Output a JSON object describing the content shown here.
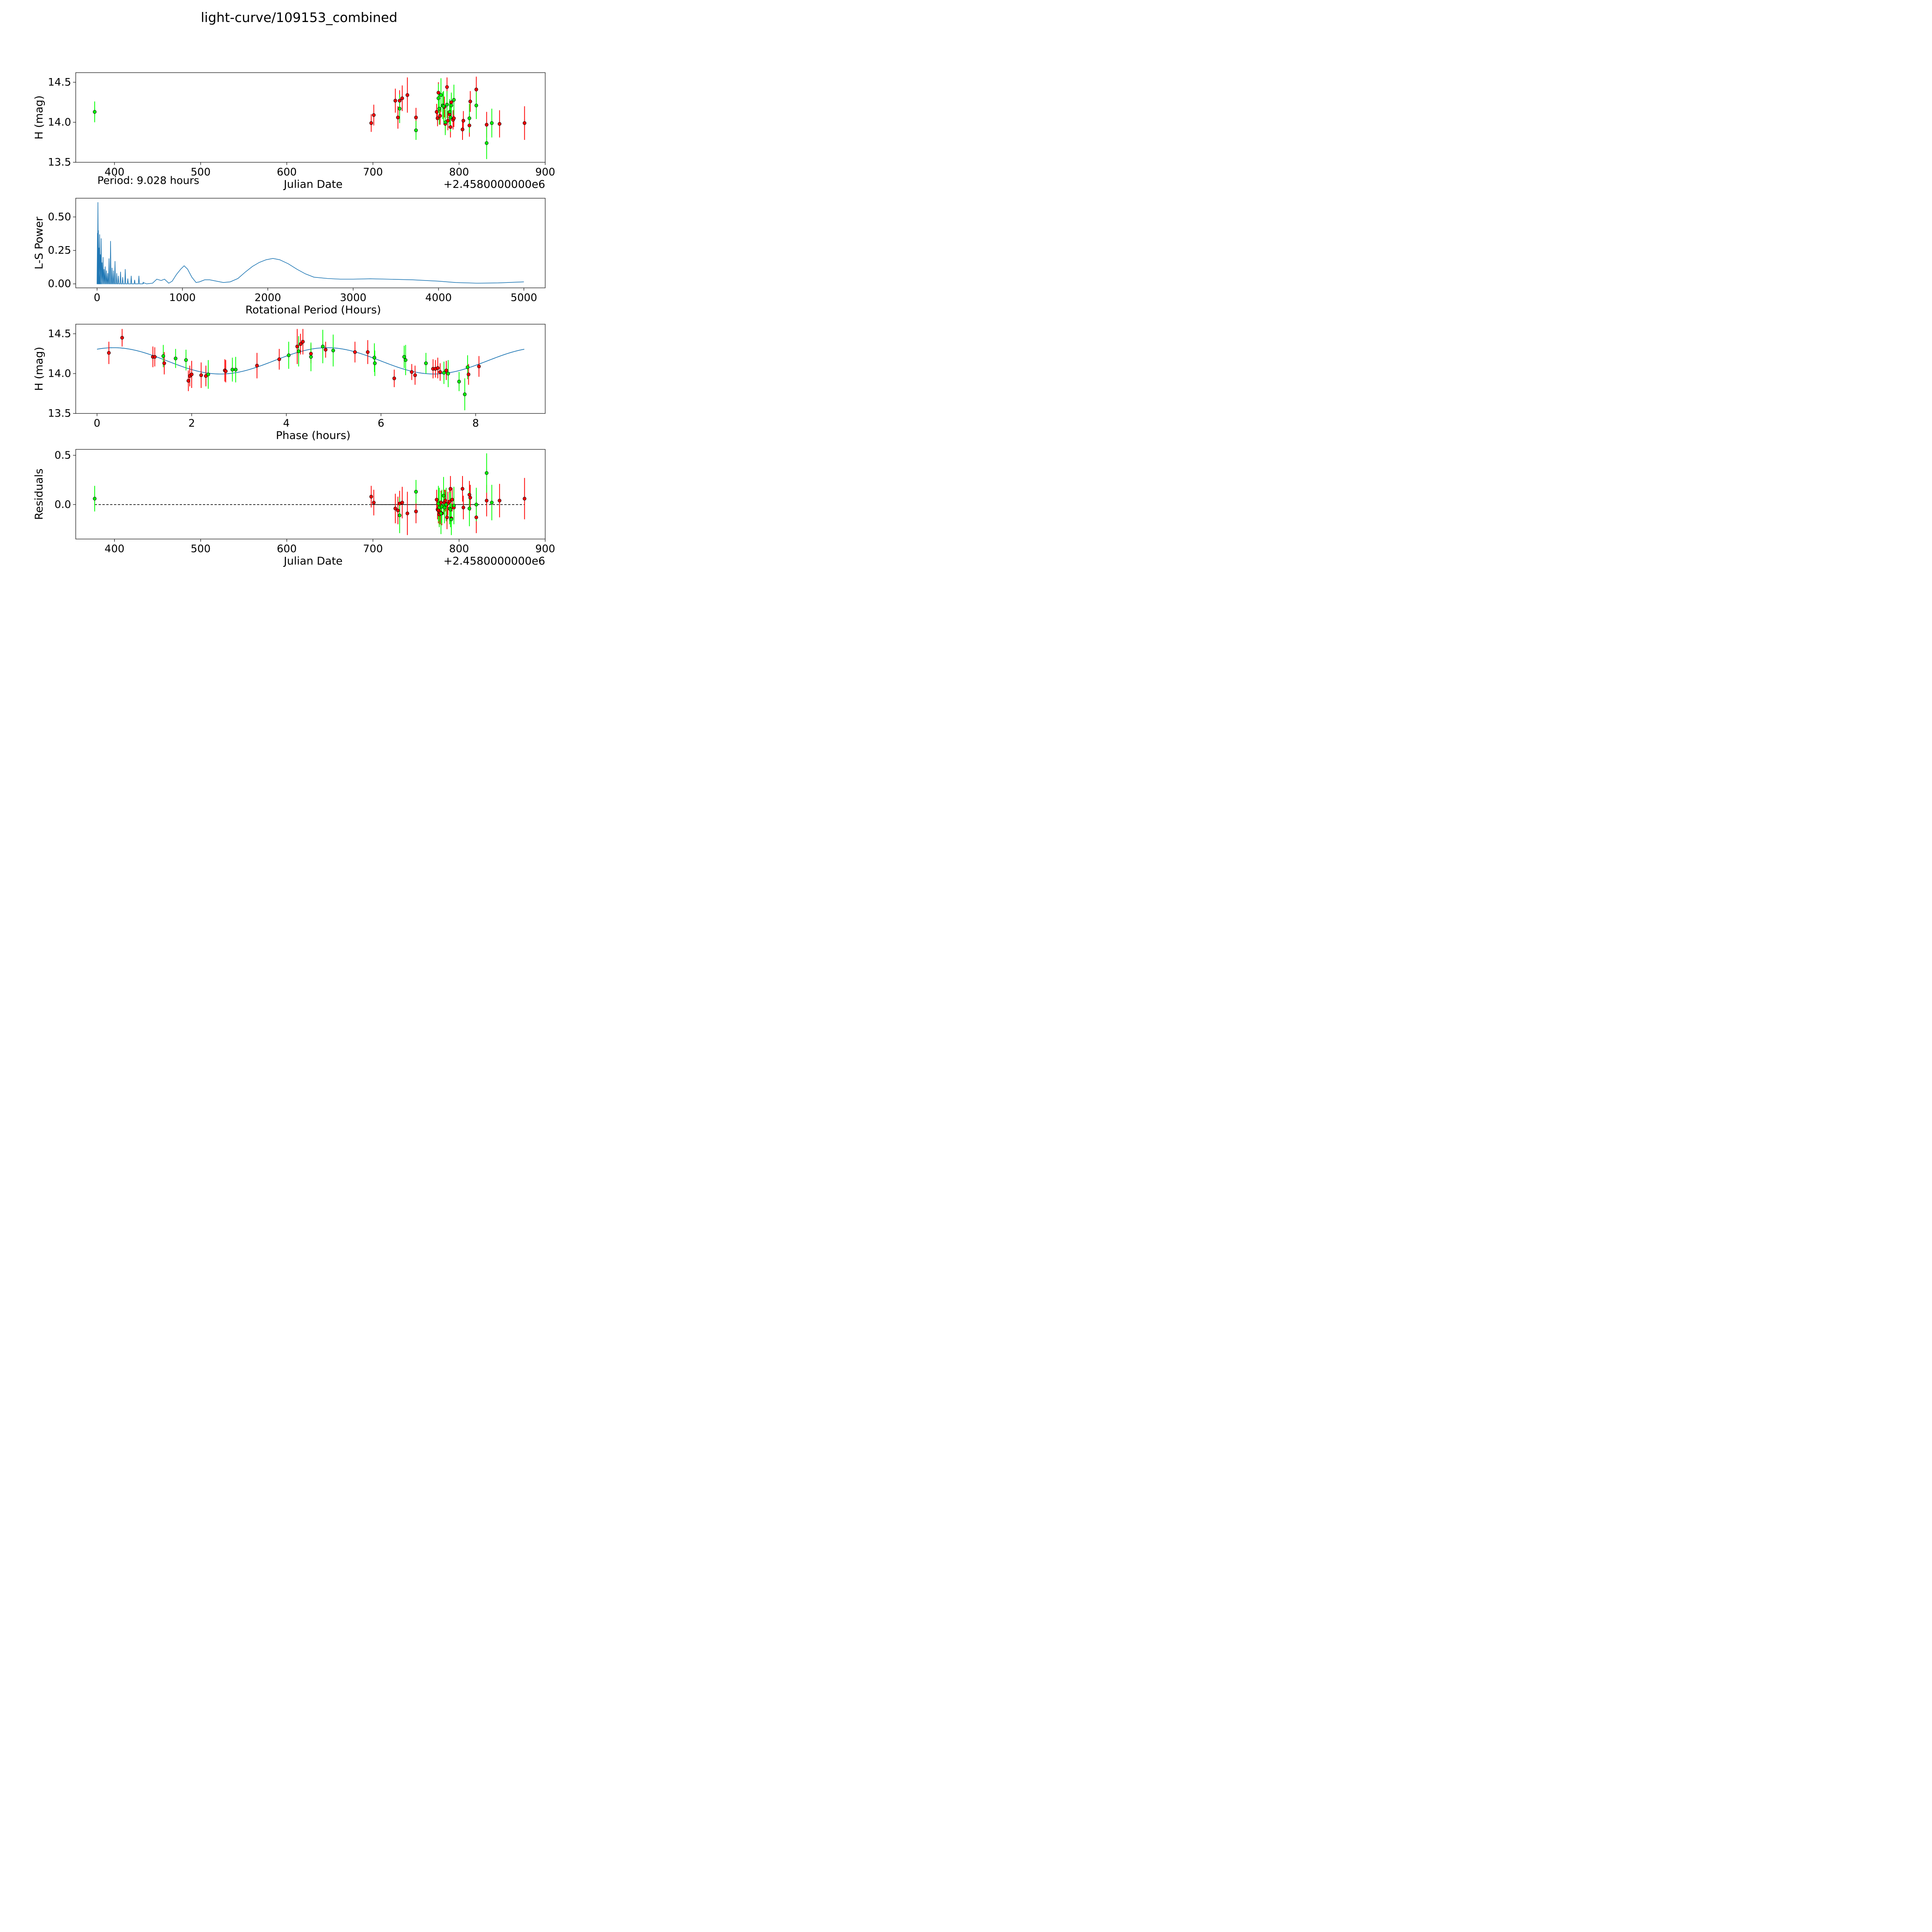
{
  "figure": {
    "title": "light-curve/109153_combined",
    "period_note": "Period: 9.028 hours"
  },
  "colors": {
    "series_a": "#ff0000",
    "series_b": "#00ff00",
    "curve": "#1f77b4",
    "marker_edge": "#000000",
    "zero_line": "#000000"
  },
  "chart_data": [
    {
      "id": "lightcurve",
      "type": "scatter",
      "xlabel": "Julian Date",
      "ylabel": "H (mag)",
      "offset_text": "+2.4580000000e6",
      "xlim": [
        355,
        900
      ],
      "ylim": [
        13.5,
        14.62
      ],
      "xticks": [
        400,
        500,
        600,
        700,
        800,
        900
      ],
      "yticks": [
        13.5,
        14.0,
        14.5
      ],
      "grid": false,
      "series": [
        {
          "color": "#ff0000",
          "points": [
            [
              698,
              13.99,
              0.11
            ],
            [
              701,
              14.09,
              0.13
            ],
            [
              726,
              14.27,
              0.15
            ],
            [
              729,
              14.06,
              0.14
            ],
            [
              731,
              14.27,
              0.13
            ],
            [
              734,
              14.3,
              0.16
            ],
            [
              740,
              14.34,
              0.22
            ],
            [
              750,
              14.06,
              0.12
            ],
            [
              774,
              14.13,
              0.1
            ],
            [
              775,
              14.05,
              0.1
            ],
            [
              776,
              14.37,
              0.13
            ],
            [
              778,
              14.08,
              0.11
            ],
            [
              783,
              14.19,
              0.13
            ],
            [
              784,
              13.98,
              0.11
            ],
            [
              786,
              14.44,
              0.12
            ],
            [
              787,
              14.02,
              0.12
            ],
            [
              789,
              14.1,
              0.12
            ],
            [
              790,
              13.94,
              0.13
            ],
            [
              791,
              14.25,
              0.12
            ],
            [
              793,
              14.03,
              0.12
            ],
            [
              794,
              14.05,
              0.11
            ],
            [
              804,
              13.91,
              0.13
            ],
            [
              805,
              14.02,
              0.12
            ],
            [
              812,
              13.96,
              0.14
            ],
            [
              813,
              14.26,
              0.13
            ],
            [
              820,
              14.41,
              0.16
            ],
            [
              832,
              13.97,
              0.16
            ],
            [
              847,
              13.98,
              0.17
            ],
            [
              876,
              13.99,
              0.21
            ]
          ]
        },
        {
          "color": "#00ff00",
          "points": [
            [
              377,
              14.13,
              0.13
            ],
            [
              731,
              14.17,
              0.18
            ],
            [
              750,
              13.9,
              0.12
            ],
            [
              776,
              14.3,
              0.18
            ],
            [
              777,
              14.17,
              0.2
            ],
            [
              779,
              14.34,
              0.21
            ],
            [
              781,
              14.21,
              0.17
            ],
            [
              782,
              14.2,
              0.19
            ],
            [
              784,
              14.0,
              0.16
            ],
            [
              786,
              14.22,
              0.17
            ],
            [
              789,
              14.13,
              0.16
            ],
            [
              790,
              14.06,
              0.18
            ],
            [
              791,
              14.21,
              0.16
            ],
            [
              794,
              14.28,
              0.19
            ],
            [
              812,
              14.05,
              0.18
            ],
            [
              820,
              14.21,
              0.17
            ],
            [
              832,
              13.74,
              0.2
            ],
            [
              838,
              13.99,
              0.18
            ]
          ]
        }
      ]
    },
    {
      "id": "periodogram",
      "type": "line",
      "xlabel": "Rotational Period (Hours)",
      "ylabel": "L-S Power",
      "xlim": [
        -250,
        5250
      ],
      "ylim": [
        -0.03,
        0.64
      ],
      "xticks": [
        0,
        1000,
        2000,
        3000,
        4000,
        5000
      ],
      "yticks": [
        0.0,
        0.25,
        0.5
      ],
      "ytick_labels": [
        "0.00",
        "0.25",
        "0.50"
      ],
      "grid": false,
      "spikes": [
        [
          5,
          0.38
        ],
        [
          10,
          0.61
        ],
        [
          15,
          0.4
        ],
        [
          22,
          0.27
        ],
        [
          30,
          0.37
        ],
        [
          38,
          0.22
        ],
        [
          48,
          0.34
        ],
        [
          58,
          0.16
        ],
        [
          70,
          0.2
        ],
        [
          82,
          0.11
        ],
        [
          95,
          0.13
        ],
        [
          110,
          0.1
        ],
        [
          125,
          0.08
        ],
        [
          140,
          0.19
        ],
        [
          158,
          0.32
        ],
        [
          175,
          0.12
        ],
        [
          192,
          0.1
        ],
        [
          210,
          0.17
        ],
        [
          230,
          0.08
        ],
        [
          250,
          0.06
        ],
        [
          275,
          0.09
        ],
        [
          300,
          0.05
        ],
        [
          330,
          0.11
        ],
        [
          360,
          0.04
        ],
        [
          400,
          0.06
        ],
        [
          440,
          0.03
        ],
        [
          490,
          0.06
        ],
        [
          540,
          0.01
        ]
      ],
      "curve": [
        [
          540,
          0.01
        ],
        [
          580,
          0.0
        ],
        [
          650,
          0.005
        ],
        [
          700,
          0.035
        ],
        [
          750,
          0.025
        ],
        [
          790,
          0.035
        ],
        [
          840,
          0.005
        ],
        [
          880,
          0.02
        ],
        [
          930,
          0.07
        ],
        [
          980,
          0.11
        ],
        [
          1020,
          0.135
        ],
        [
          1060,
          0.11
        ],
        [
          1110,
          0.05
        ],
        [
          1160,
          0.01
        ],
        [
          1200,
          0.015
        ],
        [
          1260,
          0.03
        ],
        [
          1320,
          0.03
        ],
        [
          1400,
          0.02
        ],
        [
          1480,
          0.01
        ],
        [
          1560,
          0.015
        ],
        [
          1650,
          0.04
        ],
        [
          1740,
          0.09
        ],
        [
          1820,
          0.13
        ],
        [
          1900,
          0.16
        ],
        [
          1980,
          0.18
        ],
        [
          2060,
          0.19
        ],
        [
          2140,
          0.18
        ],
        [
          2240,
          0.15
        ],
        [
          2340,
          0.11
        ],
        [
          2440,
          0.075
        ],
        [
          2540,
          0.05
        ],
        [
          2700,
          0.04
        ],
        [
          2850,
          0.035
        ],
        [
          3000,
          0.035
        ],
        [
          3200,
          0.038
        ],
        [
          3400,
          0.035
        ],
        [
          3700,
          0.03
        ],
        [
          4000,
          0.02
        ],
        [
          4200,
          0.01
        ],
        [
          4450,
          0.005
        ],
        [
          4700,
          0.007
        ],
        [
          5000,
          0.015
        ]
      ]
    },
    {
      "id": "phased",
      "type": "scatter",
      "xlabel": "Phase (hours)",
      "ylabel": "H (mag)",
      "xlim": [
        -0.45,
        9.47
      ],
      "ylim": [
        13.5,
        14.62
      ],
      "xticks": [
        0,
        2,
        4,
        6,
        8
      ],
      "yticks": [
        13.5,
        14.0,
        14.5
      ],
      "grid": false,
      "model": {
        "mean": 14.16,
        "amplitude": 0.165,
        "harmonics": 2,
        "phase_shift_hours": 0.35,
        "period_hours": 9.028
      },
      "series": [
        {
          "color": "#ff0000",
          "points": [
            [
              0.25,
              14.26,
              0.14
            ],
            [
              0.53,
              14.45,
              0.11
            ],
            [
              1.18,
              14.21,
              0.13
            ],
            [
              1.22,
              14.21,
              0.12
            ],
            [
              1.42,
              14.13,
              0.14
            ],
            [
              1.93,
              13.91,
              0.13
            ],
            [
              1.96,
              13.97,
              0.13
            ],
            [
              2.0,
              13.99,
              0.17
            ],
            [
              2.2,
              13.98,
              0.16
            ],
            [
              2.3,
              13.97,
              0.13
            ],
            [
              2.7,
              14.04,
              0.14
            ],
            [
              2.72,
              14.03,
              0.14
            ],
            [
              3.38,
              14.1,
              0.16
            ],
            [
              3.85,
              14.18,
              0.13
            ],
            [
              4.23,
              14.34,
              0.22
            ],
            [
              4.3,
              14.37,
              0.13
            ],
            [
              4.35,
              14.4,
              0.16
            ],
            [
              4.52,
              14.25,
              0.12
            ],
            [
              4.83,
              14.3,
              0.1
            ],
            [
              5.45,
              14.27,
              0.13
            ],
            [
              5.72,
              14.27,
              0.15
            ],
            [
              6.28,
              13.94,
              0.11
            ],
            [
              6.65,
              14.02,
              0.1
            ],
            [
              6.72,
              13.98,
              0.12
            ],
            [
              7.1,
              14.06,
              0.12
            ],
            [
              7.15,
              14.06,
              0.11
            ],
            [
              7.2,
              14.07,
              0.13
            ],
            [
              7.25,
              14.02,
              0.11
            ],
            [
              7.38,
              14.04,
              0.12
            ],
            [
              7.85,
              13.99,
              0.13
            ],
            [
              8.07,
              14.09,
              0.13
            ]
          ]
        },
        {
          "color": "#00ff00",
          "points": [
            [
              1.4,
              14.22,
              0.14
            ],
            [
              1.66,
              14.19,
              0.12
            ],
            [
              1.88,
              14.17,
              0.13
            ],
            [
              2.35,
              13.99,
              0.18
            ],
            [
              2.86,
              14.05,
              0.15
            ],
            [
              2.93,
              14.05,
              0.16
            ],
            [
              4.05,
              14.23,
              0.17
            ],
            [
              4.26,
              14.28,
              0.19
            ],
            [
              4.52,
              14.21,
              0.18
            ],
            [
              4.77,
              14.34,
              0.21
            ],
            [
              4.99,
              14.29,
              0.2
            ],
            [
              5.86,
              14.2,
              0.18
            ],
            [
              5.87,
              14.13,
              0.16
            ],
            [
              6.49,
              14.21,
              0.14
            ],
            [
              6.52,
              14.17,
              0.19
            ],
            [
              6.95,
              14.13,
              0.13
            ],
            [
              7.33,
              14.01,
              0.14
            ],
            [
              7.42,
              14.0,
              0.17
            ],
            [
              7.65,
              13.9,
              0.12
            ],
            [
              7.77,
              13.74,
              0.2
            ],
            [
              7.83,
              14.08,
              0.15
            ]
          ]
        }
      ]
    },
    {
      "id": "residuals",
      "type": "scatter",
      "xlabel": "Julian Date",
      "ylabel": "Residuals",
      "offset_text": "+2.4580000000e6",
      "xlim": [
        355,
        900
      ],
      "ylim": [
        -0.35,
        0.56
      ],
      "xticks": [
        400,
        500,
        600,
        700,
        800,
        900
      ],
      "yticks": [
        0.0,
        0.5
      ],
      "grid": false,
      "zero_line": {
        "from": 377,
        "to": 876,
        "solid_from": 698,
        "solid_to": 820
      },
      "series": [
        {
          "color": "#ff0000",
          "points": [
            [
              698,
              0.08,
              0.11
            ],
            [
              701,
              0.02,
              0.13
            ],
            [
              726,
              -0.04,
              0.15
            ],
            [
              729,
              -0.06,
              0.14
            ],
            [
              731,
              0.01,
              0.13
            ],
            [
              734,
              0.02,
              0.16
            ],
            [
              740,
              -0.09,
              0.22
            ],
            [
              750,
              -0.07,
              0.12
            ],
            [
              774,
              0.05,
              0.1
            ],
            [
              775,
              -0.05,
              0.1
            ],
            [
              776,
              -0.06,
              0.13
            ],
            [
              777,
              -0.1,
              0.11
            ],
            [
              778,
              -0.08,
              0.12
            ],
            [
              779,
              0.02,
              0.12
            ],
            [
              780,
              -0.09,
              0.12
            ],
            [
              783,
              0.02,
              0.13
            ],
            [
              784,
              0.04,
              0.11
            ],
            [
              786,
              -0.13,
              0.12
            ],
            [
              787,
              0.01,
              0.12
            ],
            [
              789,
              0.03,
              0.12
            ],
            [
              790,
              0.16,
              0.13
            ],
            [
              791,
              -0.14,
              0.12
            ],
            [
              792,
              0.05,
              0.12
            ],
            [
              794,
              -0.03,
              0.11
            ],
            [
              804,
              0.16,
              0.13
            ],
            [
              805,
              -0.03,
              0.12
            ],
            [
              812,
              0.1,
              0.14
            ],
            [
              813,
              0.07,
              0.13
            ],
            [
              820,
              -0.13,
              0.16
            ],
            [
              832,
              0.04,
              0.16
            ],
            [
              847,
              0.04,
              0.17
            ],
            [
              876,
              0.06,
              0.21
            ]
          ]
        },
        {
          "color": "#00ff00",
          "points": [
            [
              377,
              0.06,
              0.13
            ],
            [
              731,
              -0.11,
              0.18
            ],
            [
              750,
              0.13,
              0.12
            ],
            [
              776,
              0.01,
              0.18
            ],
            [
              777,
              -0.03,
              0.2
            ],
            [
              779,
              -0.09,
              0.21
            ],
            [
              780,
              -0.02,
              0.17
            ],
            [
              782,
              0.09,
              0.19
            ],
            [
              783,
              -0.03,
              0.16
            ],
            [
              785,
              0.0,
              0.17
            ],
            [
              789,
              -0.04,
              0.16
            ],
            [
              790,
              -0.05,
              0.18
            ],
            [
              791,
              -0.15,
              0.16
            ],
            [
              794,
              -0.01,
              0.19
            ],
            [
              812,
              -0.04,
              0.18
            ],
            [
              820,
              0.0,
              0.17
            ],
            [
              832,
              0.32,
              0.2
            ],
            [
              838,
              0.02,
              0.18
            ]
          ]
        }
      ]
    }
  ]
}
